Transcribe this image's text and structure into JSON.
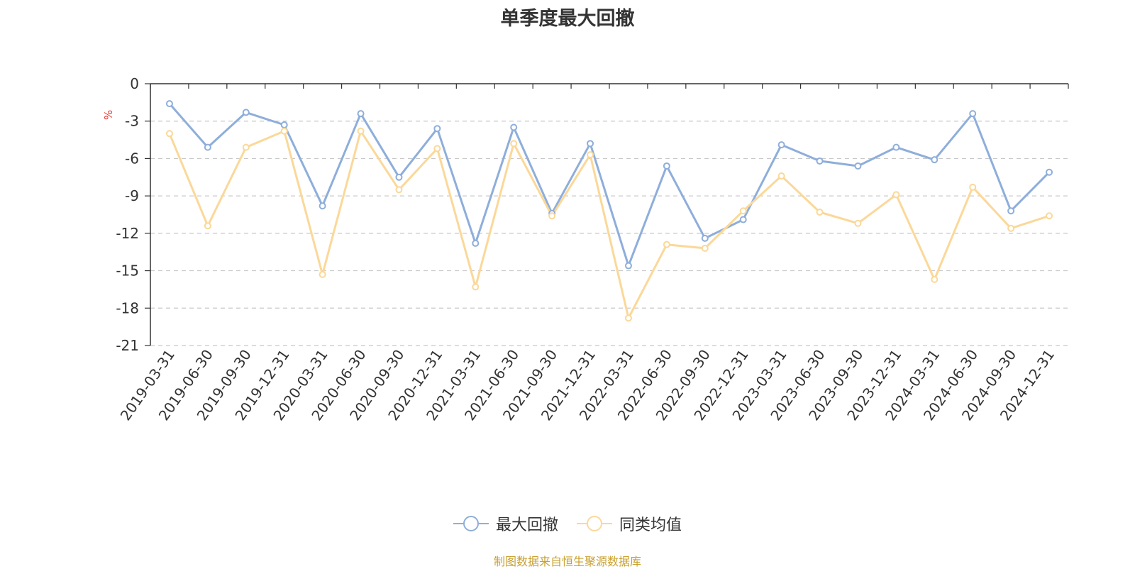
{
  "chart_data": {
    "type": "line",
    "title": "单季度最大回撤",
    "ylabel": "%",
    "ylim": [
      -21,
      0
    ],
    "yticks": [
      0,
      -3,
      -6,
      -9,
      -12,
      -15,
      -18,
      -21
    ],
    "grid": true,
    "legend_position": "bottom-center",
    "categories": [
      "2019-03-31",
      "2019-06-30",
      "2019-09-30",
      "2019-12-31",
      "2020-03-31",
      "2020-06-30",
      "2020-09-30",
      "2020-12-31",
      "2021-03-31",
      "2021-06-30",
      "2021-09-30",
      "2021-12-31",
      "2022-03-31",
      "2022-06-30",
      "2022-09-30",
      "2022-12-31",
      "2023-03-31",
      "2023-06-30",
      "2023-09-30",
      "2023-12-31",
      "2024-03-31",
      "2024-06-30",
      "2024-09-30",
      "2024-12-31"
    ],
    "series": [
      {
        "name": "最大回撤",
        "color": "#8eaedb",
        "values": [
          -1.6,
          -5.1,
          -2.3,
          -3.3,
          -9.8,
          -2.4,
          -7.5,
          -3.6,
          -12.8,
          -3.5,
          -10.4,
          -4.8,
          -14.6,
          -6.6,
          -12.4,
          -10.9,
          -4.9,
          -6.2,
          -6.6,
          -5.1,
          -6.1,
          -2.4,
          -10.2,
          -7.1
        ]
      },
      {
        "name": "同类均值",
        "color": "#fbd899",
        "values": [
          -4.0,
          -11.4,
          -5.1,
          -3.8,
          -15.3,
          -3.8,
          -8.5,
          -5.2,
          -16.3,
          -4.8,
          -10.6,
          -5.7,
          -18.8,
          -12.9,
          -13.2,
          -10.2,
          -7.4,
          -10.3,
          -11.2,
          -8.9,
          -15.7,
          -8.3,
          -11.6,
          -10.6
        ]
      }
    ]
  },
  "source": "制图数据来自恒生聚源数据库"
}
